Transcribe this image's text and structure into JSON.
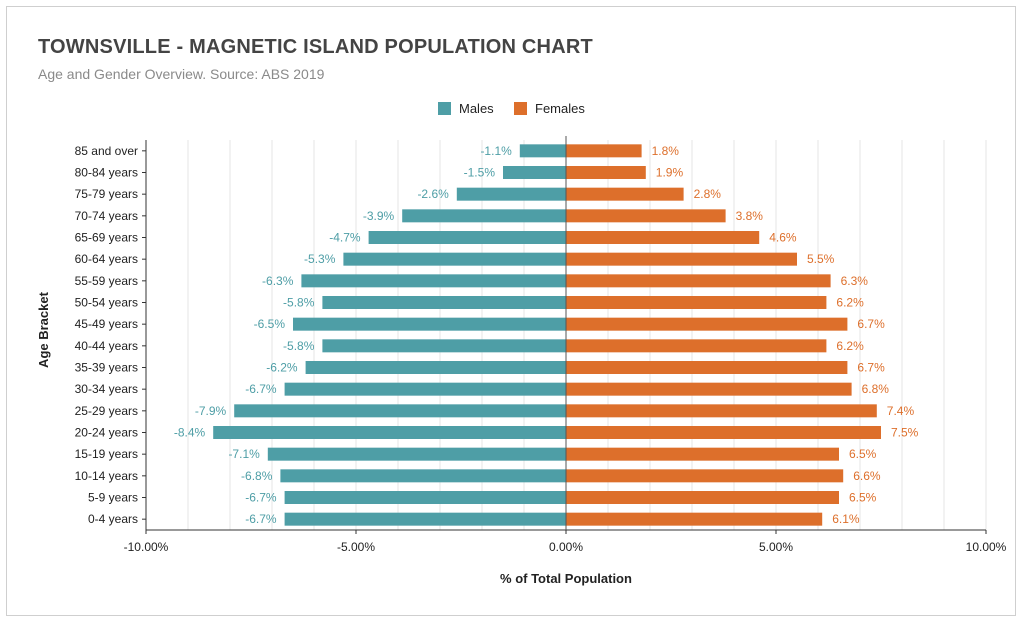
{
  "chart_data": {
    "type": "bar",
    "orientation": "horizontal",
    "title": "TOWNSVILLE - MAGNETIC ISLAND POPULATION CHART",
    "subtitle": "Age and Gender Overview. Source: ABS 2019",
    "xlabel": "% of Total Population",
    "ylabel": "Age Bracket",
    "xlim": [
      -10,
      10
    ],
    "x_ticks": [
      -10,
      -5,
      0,
      5,
      10
    ],
    "x_tick_labels": [
      "-10.00%",
      "-5.00%",
      "0.00%",
      "5.00%",
      "10.00%"
    ],
    "grid": true,
    "legend_position": "top-center",
    "categories": [
      "85 and over",
      "80-84 years",
      "75-79 years",
      "70-74 years",
      "65-69 years",
      "60-64 years",
      "55-59 years",
      "50-54 years",
      "45-49 years",
      "40-44 years",
      "35-39 years",
      "30-34 years",
      "25-29 years",
      "20-24 years",
      "15-19 years",
      "10-14 years",
      "5-9 years",
      "0-4 years"
    ],
    "series": [
      {
        "name": "Males",
        "color": "#4e9ea6",
        "values": [
          -1.1,
          -1.5,
          -2.6,
          -3.9,
          -4.7,
          -5.3,
          -6.3,
          -5.8,
          -6.5,
          -5.8,
          -6.2,
          -6.7,
          -7.9,
          -8.4,
          -7.1,
          -6.8,
          -6.7,
          -6.7
        ],
        "labels": [
          "-1.1%",
          "-1.5%",
          "-2.6%",
          "-3.9%",
          "-4.7%",
          "-5.3%",
          "-6.3%",
          "-5.8%",
          "-6.5%",
          "-5.8%",
          "-6.2%",
          "-6.7%",
          "-7.9%",
          "-8.4%",
          "-7.1%",
          "-6.8%",
          "-6.7%",
          "-6.7%"
        ]
      },
      {
        "name": "Females",
        "color": "#dd6f2b",
        "values": [
          1.8,
          1.9,
          2.8,
          3.8,
          4.6,
          5.5,
          6.3,
          6.2,
          6.7,
          6.2,
          6.7,
          6.8,
          7.4,
          7.5,
          6.5,
          6.6,
          6.5,
          6.1
        ],
        "labels": [
          "1.8%",
          "1.9%",
          "2.8%",
          "3.8%",
          "4.6%",
          "5.5%",
          "6.3%",
          "6.2%",
          "6.7%",
          "6.2%",
          "6.7%",
          "6.8%",
          "7.4%",
          "7.5%",
          "6.5%",
          "6.6%",
          "6.5%",
          "6.1%"
        ]
      }
    ]
  }
}
